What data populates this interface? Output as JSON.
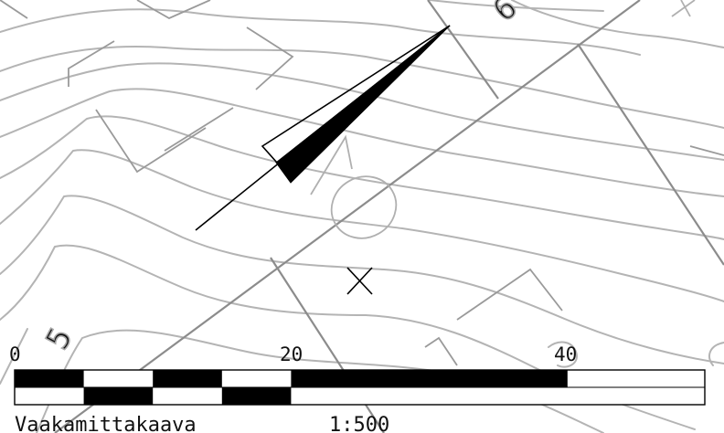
{
  "map": {
    "contour_labels": [
      "5",
      "6"
    ]
  },
  "scale_bar": {
    "tick_labels": [
      "0",
      "20",
      "40"
    ],
    "caption": "Vaakamittakaava",
    "ratio": "1:500"
  },
  "colors": {
    "contour": "#b4b4b4",
    "grid": "#8c8c8c",
    "scale_fill": "#000000",
    "background": "#ffffff"
  },
  "icons": [
    "north-arrow-icon",
    "survey-cross-icon"
  ]
}
